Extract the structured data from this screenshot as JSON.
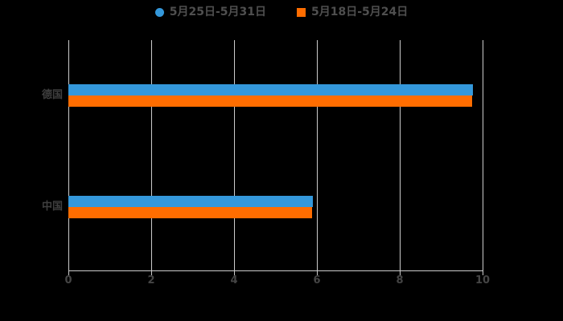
{
  "chart": {
    "background": "#000000"
  },
  "chart_data": {
    "type": "bar",
    "orientation": "horizontal",
    "title": "",
    "categories": [
      "德国",
      "中国"
    ],
    "series": [
      {
        "name": "5月25日-5月31日",
        "color": "#3498db",
        "legend_marker": "circle",
        "values": [
          9.77,
          5.9
        ]
      },
      {
        "name": "5月18日-5月24日",
        "color": "#ff6d00",
        "legend_marker": "square",
        "values": [
          9.75,
          5.88
        ]
      }
    ],
    "xlim": [
      0,
      10
    ],
    "x_ticks": [
      0,
      2,
      4,
      6,
      8,
      10
    ],
    "grid": "vertical-only",
    "legend_position": "top-center",
    "axis_color": "#cccccc",
    "gridline_color": "#cccccc",
    "tick_label_color": "#454545",
    "category_label_color": "#3f3f3f",
    "legend_text_color": "#4f4f4f"
  }
}
